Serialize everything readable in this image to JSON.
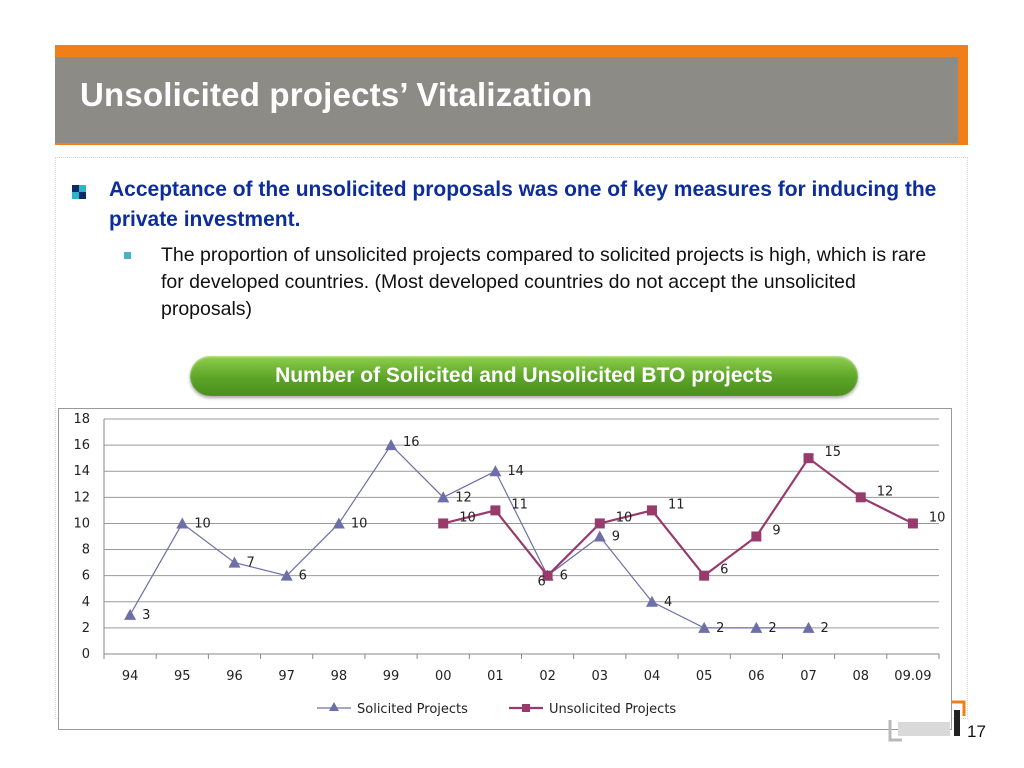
{
  "slide": {
    "title": "Unsolicited projects’  Vitalization",
    "bullet1": "Acceptance of the unsolicited proposals was one of key measures for inducing the private investment.",
    "bullet2": "The proportion of unsolicited projects compared to solicited projects is high, which is rare for developed countries. (Most developed countries do not accept the unsolicited proposals)",
    "chart_banner": "Number of Solicited and Unsolicited BTO projects",
    "page_number": "17",
    "colors": {
      "accent": "#f07e19",
      "title_band": "#8d8b86",
      "bullet_text": "#0d2e9a",
      "banner": "#5ca428"
    }
  },
  "chart_data": {
    "type": "line",
    "title": "",
    "xlabel": "",
    "ylabel": "",
    "categories": [
      "94",
      "95",
      "96",
      "97",
      "98",
      "99",
      "00",
      "01",
      "02",
      "03",
      "04",
      "05",
      "06",
      "07",
      "08",
      "09.09"
    ],
    "ylim": [
      0,
      18
    ],
    "yticks": [
      0,
      2,
      4,
      6,
      8,
      10,
      12,
      14,
      16,
      18
    ],
    "grid": true,
    "legend_position": "bottom",
    "series": [
      {
        "name": "Solicited Projects",
        "color": "#6e6fa8",
        "marker": "triangle",
        "values": [
          3,
          10,
          7,
          6,
          10,
          16,
          12,
          14,
          6,
          9,
          4,
          2,
          2,
          2,
          null,
          null
        ]
      },
      {
        "name": "Unsolicited Projects",
        "color": "#983a6c",
        "marker": "square",
        "values": [
          null,
          null,
          null,
          null,
          null,
          null,
          10,
          11,
          6,
          10,
          11,
          6,
          9,
          15,
          12,
          10
        ]
      }
    ]
  }
}
